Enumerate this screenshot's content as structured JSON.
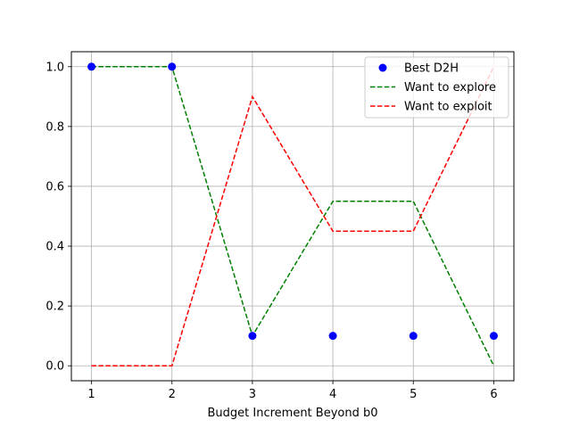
{
  "chart_data": {
    "type": "line",
    "title": "",
    "xlabel": "Budget Increment Beyond b0",
    "ylabel": "",
    "x": [
      1,
      2,
      3,
      4,
      5,
      6
    ],
    "xlim": [
      0.75,
      6.25
    ],
    "ylim": [
      -0.05,
      1.05
    ],
    "xticks": [
      "1",
      "2",
      "3",
      "4",
      "5",
      "6"
    ],
    "yticks": [
      "0.0",
      "0.2",
      "0.4",
      "0.6",
      "0.8",
      "1.0"
    ],
    "grid": true,
    "legend_position": "top-right",
    "series": [
      {
        "name": "Best D2H",
        "kind": "scatter",
        "color": "#0000ff",
        "values": [
          1.0,
          1.0,
          0.1,
          0.1,
          0.1,
          0.1
        ]
      },
      {
        "name": "Want to explore",
        "kind": "line",
        "style": "dashed",
        "color": "#008000",
        "values": [
          1.0,
          1.0,
          0.1,
          0.55,
          0.55,
          0.0
        ]
      },
      {
        "name": "Want to exploit",
        "kind": "line",
        "style": "dashed",
        "color": "#ff0000",
        "values": [
          0.0,
          0.0,
          0.9,
          0.45,
          0.45,
          1.0
        ]
      }
    ]
  }
}
